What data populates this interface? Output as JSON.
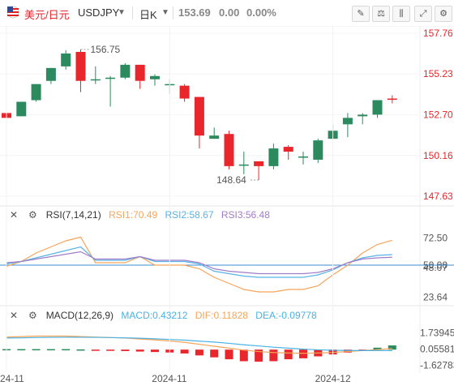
{
  "toolbar": {
    "flag_icon": "flag-icon",
    "symbol_name": "美元/日元",
    "symbol_code": "USDJPY",
    "period": "日K",
    "last_price": "153.69",
    "change": "0.00",
    "change_pct": "0.00%",
    "tools": [
      "drawing-tool-icon",
      "compare-icon",
      "indicator-icon",
      "fullscreen-icon",
      "settings-icon"
    ]
  },
  "colors": {
    "up": "#2b8a5e",
    "down": "#e8262b",
    "rsi1": "#f5a55a",
    "rsi2": "#58b3e6",
    "rsi3": "#a07dc8",
    "dif": "#f5a55a",
    "dea": "#4ab2e3",
    "level": "#3b8fd6"
  },
  "rsi_header": {
    "name": "RSI(7,14,21)",
    "rsi1": "RSI1:70.49",
    "rsi2": "RSI2:58.67",
    "rsi3": "RSI3:56.48"
  },
  "macd_header": {
    "name": "MACD(12,26,9)",
    "macd": "MACD:0.43212",
    "dif": "DIF:0.11828",
    "dea": "DEA:-0.09778"
  },
  "chart_data": [
    {
      "type": "candlestick",
      "y_ticks": [
        "157.76",
        "155.23",
        "152.70",
        "150.16",
        "147.63"
      ],
      "ylim": [
        147.63,
        157.76
      ],
      "annotations": {
        "high": "156.75",
        "low": "148.64"
      },
      "x_ticks": [
        {
          "label": "24-11",
          "index": 0
        },
        {
          "label": "2024-11",
          "index": 11
        },
        {
          "label": "2024-12",
          "index": 22
        }
      ],
      "candles": [
        {
          "o": 152.8,
          "h": 153.0,
          "c": 152.5,
          "l": 152.3
        },
        {
          "o": 152.6,
          "h": 153.5,
          "c": 153.5,
          "l": 152.6
        },
        {
          "o": 153.6,
          "h": 154.6,
          "c": 154.6,
          "l": 153.5
        },
        {
          "o": 154.8,
          "h": 155.6,
          "c": 155.6,
          "l": 154.6
        },
        {
          "o": 155.7,
          "h": 156.7,
          "c": 156.5,
          "l": 155.5
        },
        {
          "o": 156.6,
          "h": 156.75,
          "c": 154.8,
          "l": 154.1
        },
        {
          "o": 154.9,
          "h": 155.7,
          "c": 154.9,
          "l": 154.6
        },
        {
          "o": 155.0,
          "h": 155.1,
          "c": 155.0,
          "l": 153.2
        },
        {
          "o": 155.0,
          "h": 155.9,
          "c": 155.8,
          "l": 154.9
        },
        {
          "o": 155.8,
          "h": 155.8,
          "c": 154.8,
          "l": 154.3
        },
        {
          "o": 154.9,
          "h": 155.2,
          "c": 155.1,
          "l": 154.5
        },
        {
          "o": 154.6,
          "h": 154.9,
          "c": 154.6,
          "l": 154.0
        },
        {
          "o": 154.5,
          "h": 154.6,
          "c": 153.7,
          "l": 153.5
        },
        {
          "o": 153.8,
          "h": 153.8,
          "c": 151.4,
          "l": 150.6
        },
        {
          "o": 151.2,
          "h": 151.9,
          "c": 151.4,
          "l": 151.2
        },
        {
          "o": 151.5,
          "h": 151.7,
          "c": 149.5,
          "l": 149.3
        },
        {
          "o": 149.6,
          "h": 150.4,
          "c": 149.6,
          "l": 149.0
        },
        {
          "o": 149.8,
          "h": 149.8,
          "c": 149.5,
          "l": 148.64
        },
        {
          "o": 149.5,
          "h": 150.9,
          "c": 150.6,
          "l": 149.3
        },
        {
          "o": 150.7,
          "h": 150.8,
          "c": 150.4,
          "l": 149.9
        },
        {
          "o": 150.1,
          "h": 150.4,
          "c": 150.1,
          "l": 149.6
        },
        {
          "o": 149.9,
          "h": 151.2,
          "c": 151.1,
          "l": 149.7
        },
        {
          "o": 151.2,
          "h": 152.1,
          "c": 151.7,
          "l": 151.2
        },
        {
          "o": 152.1,
          "h": 152.8,
          "c": 152.5,
          "l": 151.3
        },
        {
          "o": 152.6,
          "h": 152.8,
          "c": 152.7,
          "l": 152.1
        },
        {
          "o": 152.7,
          "h": 153.6,
          "c": 153.6,
          "l": 152.5
        },
        {
          "o": 153.7,
          "h": 153.9,
          "c": 153.69,
          "l": 153.4
        }
      ]
    },
    {
      "type": "line",
      "name": "RSI",
      "y_ticks": [
        "72.50",
        "50.00",
        "48.07",
        "23.64"
      ],
      "ylim": [
        20,
        80
      ],
      "reference_level": 50.0,
      "series": [
        {
          "name": "RSI1",
          "values": [
            49,
            53,
            60,
            65,
            70,
            73,
            52,
            52,
            52,
            57,
            50,
            50,
            50,
            47,
            40,
            35,
            30,
            28,
            28,
            30,
            30,
            33,
            42,
            50,
            60,
            67,
            70.49
          ]
        },
        {
          "name": "RSI2",
          "values": [
            51,
            53,
            56,
            59,
            62,
            65,
            54,
            54,
            54,
            57,
            53,
            53,
            53,
            51,
            45,
            43,
            41,
            40,
            40,
            40,
            40,
            42,
            46,
            52,
            56,
            58,
            58.67
          ]
        },
        {
          "name": "RSI3",
          "values": [
            52,
            53,
            55,
            57,
            59,
            61,
            55,
            55,
            55,
            57,
            54,
            54,
            54,
            52,
            47,
            45,
            44,
            43,
            43,
            43,
            43,
            44,
            47,
            52,
            55,
            56,
            56.48
          ]
        }
      ]
    },
    {
      "type": "bar",
      "name": "MACD",
      "y_ticks": [
        "1.73945",
        "0.05581",
        "-1.62783"
      ],
      "ylim": [
        -2.0,
        2.2
      ],
      "histogram": [
        0.05,
        0.05,
        0.05,
        0.05,
        0.05,
        0.02,
        -0.05,
        -0.1,
        -0.15,
        -0.2,
        -0.25,
        -0.3,
        -0.4,
        -0.6,
        -0.8,
        -1.0,
        -1.2,
        -1.25,
        -1.2,
        -1.0,
        -0.9,
        -0.7,
        -0.5,
        -0.3,
        -0.1,
        0.2,
        0.43212
      ],
      "series": [
        {
          "name": "DIF",
          "values": [
            1.3,
            1.35,
            1.4,
            1.4,
            1.4,
            1.35,
            1.3,
            1.25,
            1.2,
            1.1,
            1.0,
            0.9,
            0.75,
            0.55,
            0.35,
            0.15,
            -0.05,
            -0.2,
            -0.3,
            -0.35,
            -0.38,
            -0.35,
            -0.3,
            -0.2,
            -0.1,
            0.0,
            0.11828
          ]
        },
        {
          "name": "DEA",
          "values": [
            1.2,
            1.22,
            1.25,
            1.27,
            1.28,
            1.28,
            1.27,
            1.25,
            1.22,
            1.18,
            1.12,
            1.05,
            0.98,
            0.88,
            0.78,
            0.65,
            0.5,
            0.38,
            0.25,
            0.15,
            0.05,
            -0.02,
            -0.07,
            -0.09,
            -0.1,
            -0.1,
            -0.09778
          ]
        }
      ]
    }
  ]
}
